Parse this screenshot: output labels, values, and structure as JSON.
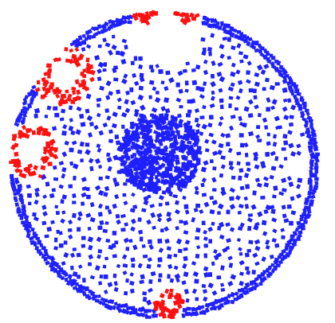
{
  "colors": {
    "background": "#ffffff",
    "base_particles": "#1f20ff",
    "highlight_particles": "#ff1111"
  }
}
